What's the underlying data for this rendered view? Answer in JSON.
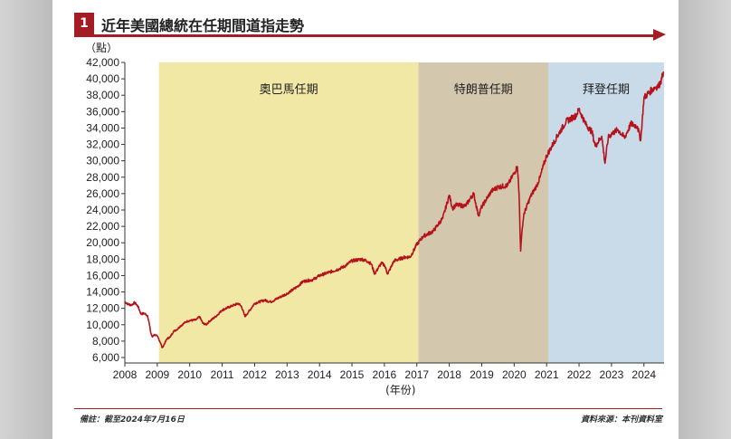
{
  "header": {
    "number": "1",
    "title": "近年美國總統在任期間道指走勢"
  },
  "footer": {
    "note": "備註：截至2024年7月16日",
    "source": "資料來源：本刊資料室"
  },
  "colors": {
    "accent": "#a51d24",
    "line": "#b5121b",
    "obama_band": "#f2e8a6",
    "trump_band": "#d3c7ae",
    "biden_band": "#c9dbe8"
  },
  "chart_data": {
    "type": "line",
    "title": "近年美國總統在任期間道指走勢",
    "ylabel": "（點）",
    "xlabel": "(年份)",
    "xlim": [
      2008,
      2024.62
    ],
    "ylim": [
      6000,
      42000
    ],
    "y_ticks": [
      "42,000",
      "40,000",
      "38,000",
      "36,000",
      "34,000",
      "32,000",
      "30,000",
      "28,000",
      "26,000",
      "24,000",
      "22,000",
      "20,000",
      "18,000",
      "16,000",
      "14,000",
      "12,000",
      "10,000",
      "8,000",
      "6,000"
    ],
    "x_ticks": [
      "2008",
      "2009",
      "2010",
      "2011",
      "2012",
      "2013",
      "2014",
      "2015",
      "2016",
      "2017",
      "2018",
      "2019",
      "2020",
      "2021",
      "2022",
      "2023",
      "2024"
    ],
    "periods": [
      {
        "label": "奧巴馬任期",
        "start": 2009.05,
        "end": 2017.05
      },
      {
        "label": "特朗普任期",
        "start": 2017.05,
        "end": 2021.05
      },
      {
        "label": "拜登任期",
        "start": 2021.05,
        "end": 2024.62
      }
    ],
    "series": [
      {
        "x": [
          2008.0,
          2008.1,
          2008.2,
          2008.3,
          2008.4,
          2008.5,
          2008.6,
          2008.7,
          2008.75,
          2008.8,
          2008.85,
          2008.9,
          2009.0,
          2009.1,
          2009.15,
          2009.2,
          2009.3,
          2009.4,
          2009.5,
          2009.6,
          2009.7,
          2009.8,
          2009.9,
          2010.0,
          2010.2,
          2010.3,
          2010.4,
          2010.5,
          2010.6,
          2010.8,
          2011.0,
          2011.3,
          2011.5,
          2011.6,
          2011.7,
          2011.8,
          2012.0,
          2012.3,
          2012.5,
          2012.8,
          2013.0,
          2013.3,
          2013.5,
          2013.8,
          2014.0,
          2014.3,
          2014.6,
          2014.8,
          2015.0,
          2015.3,
          2015.5,
          2015.6,
          2015.7,
          2015.9,
          2016.0,
          2016.1,
          2016.3,
          2016.6,
          2016.8,
          2017.0,
          2017.2,
          2017.5,
          2017.8,
          2018.0,
          2018.1,
          2018.2,
          2018.5,
          2018.75,
          2018.9,
          2019.0,
          2019.3,
          2019.5,
          2019.8,
          2020.0,
          2020.1,
          2020.15,
          2020.2,
          2020.25,
          2020.3,
          2020.5,
          2020.7,
          2020.8,
          2020.9,
          2021.0,
          2021.3,
          2021.6,
          2021.9,
          2022.0,
          2022.2,
          2022.4,
          2022.5,
          2022.7,
          2022.8,
          2022.9,
          2023.0,
          2023.2,
          2023.4,
          2023.6,
          2023.8,
          2023.9,
          2024.0,
          2024.2,
          2024.35,
          2024.45,
          2024.55,
          2024.6
        ],
        "y": [
          12800,
          12500,
          12400,
          12700,
          12300,
          11300,
          11400,
          11100,
          10200,
          9000,
          8500,
          8800,
          8600,
          7800,
          7200,
          7500,
          8300,
          8500,
          9200,
          9400,
          9800,
          10100,
          10400,
          10500,
          10600,
          11000,
          10200,
          10000,
          10400,
          11000,
          11800,
          12300,
          12600,
          12200,
          11000,
          11500,
          12600,
          13000,
          12800,
          13400,
          13800,
          14600,
          15300,
          15500,
          16000,
          16400,
          16800,
          17200,
          17800,
          18000,
          17700,
          17400,
          16200,
          17500,
          17300,
          16200,
          17800,
          18200,
          18300,
          19800,
          20800,
          21400,
          23000,
          25800,
          24200,
          24600,
          24500,
          26000,
          23300,
          24400,
          26300,
          26800,
          27000,
          28500,
          29300,
          26000,
          19000,
          21800,
          23500,
          25600,
          27000,
          28000,
          29400,
          30600,
          32800,
          34800,
          35500,
          36300,
          34500,
          33500,
          31800,
          33000,
          29700,
          32800,
          33300,
          33800,
          32800,
          34500,
          34200,
          32500,
          37700,
          38500,
          39000,
          39100,
          40000,
          40900
        ]
      }
    ]
  }
}
